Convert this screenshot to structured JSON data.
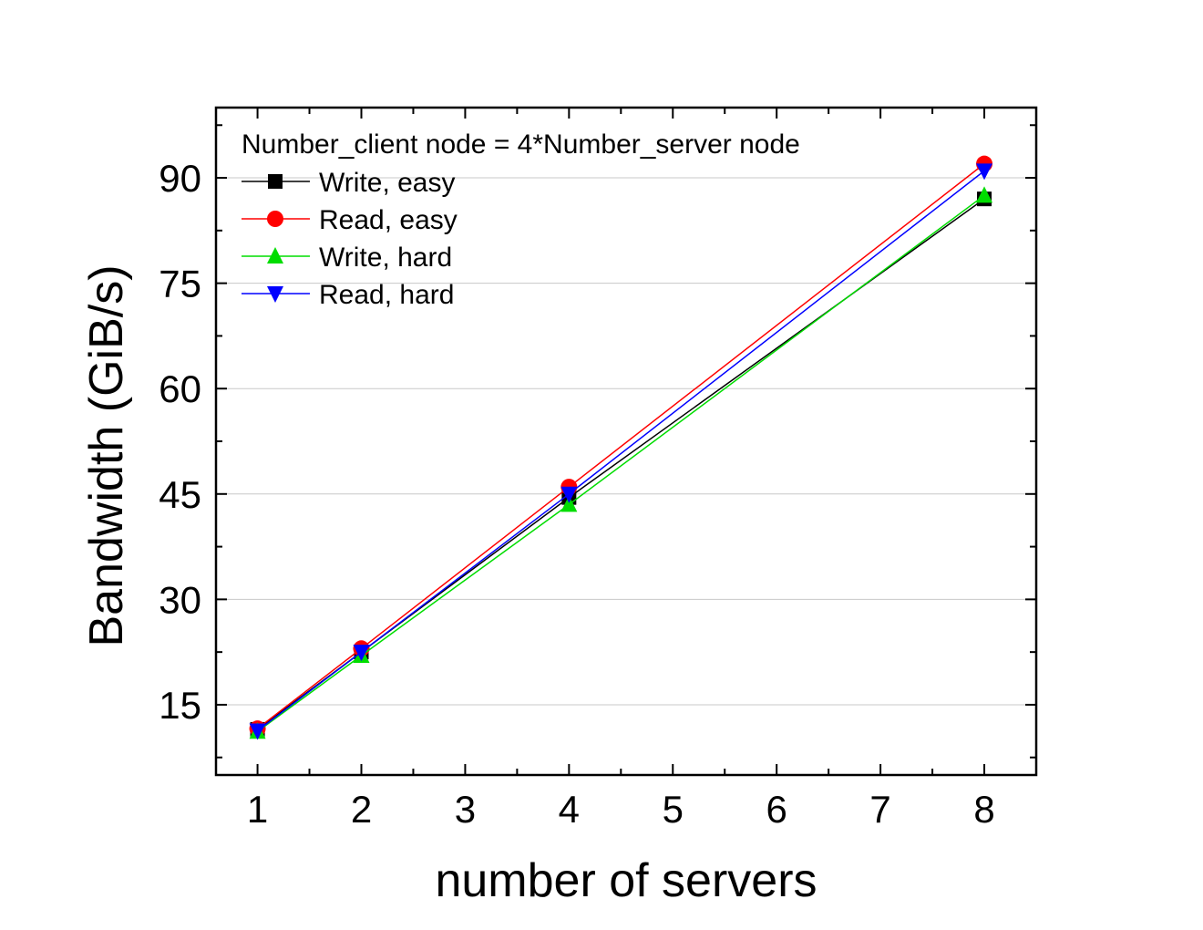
{
  "chart_data": {
    "type": "line",
    "xlabel": "number of servers",
    "ylabel": "Bandwidth (GiB/s)",
    "x_ticks": [
      "1",
      "2",
      "3",
      "4",
      "5",
      "6",
      "7",
      "8"
    ],
    "y_ticks": [
      "15",
      "30",
      "45",
      "60",
      "75",
      "90"
    ],
    "xlim": [
      0.6,
      8.5
    ],
    "ylim": [
      5,
      100
    ],
    "grid": "horizontal",
    "legend_title": "Number_client node = 4*Number_server node",
    "legend_position": "top-left",
    "x": [
      1,
      2,
      4,
      8
    ],
    "series": [
      {
        "name": "Write, easy",
        "values": [
          11.5,
          22.5,
          44.5,
          87.0
        ],
        "color": "#000000",
        "marker": "square"
      },
      {
        "name": "Read, easy",
        "values": [
          11.6,
          23.0,
          46.0,
          92.0
        ],
        "color": "#ff0000",
        "marker": "circle"
      },
      {
        "name": "Write, hard",
        "values": [
          11.2,
          22.0,
          43.5,
          87.5
        ],
        "color": "#00dd00",
        "marker": "triangle-up"
      },
      {
        "name": "Read, hard",
        "values": [
          11.3,
          22.5,
          45.0,
          91.0
        ],
        "color": "#0000ff",
        "marker": "triangle-down"
      }
    ]
  }
}
